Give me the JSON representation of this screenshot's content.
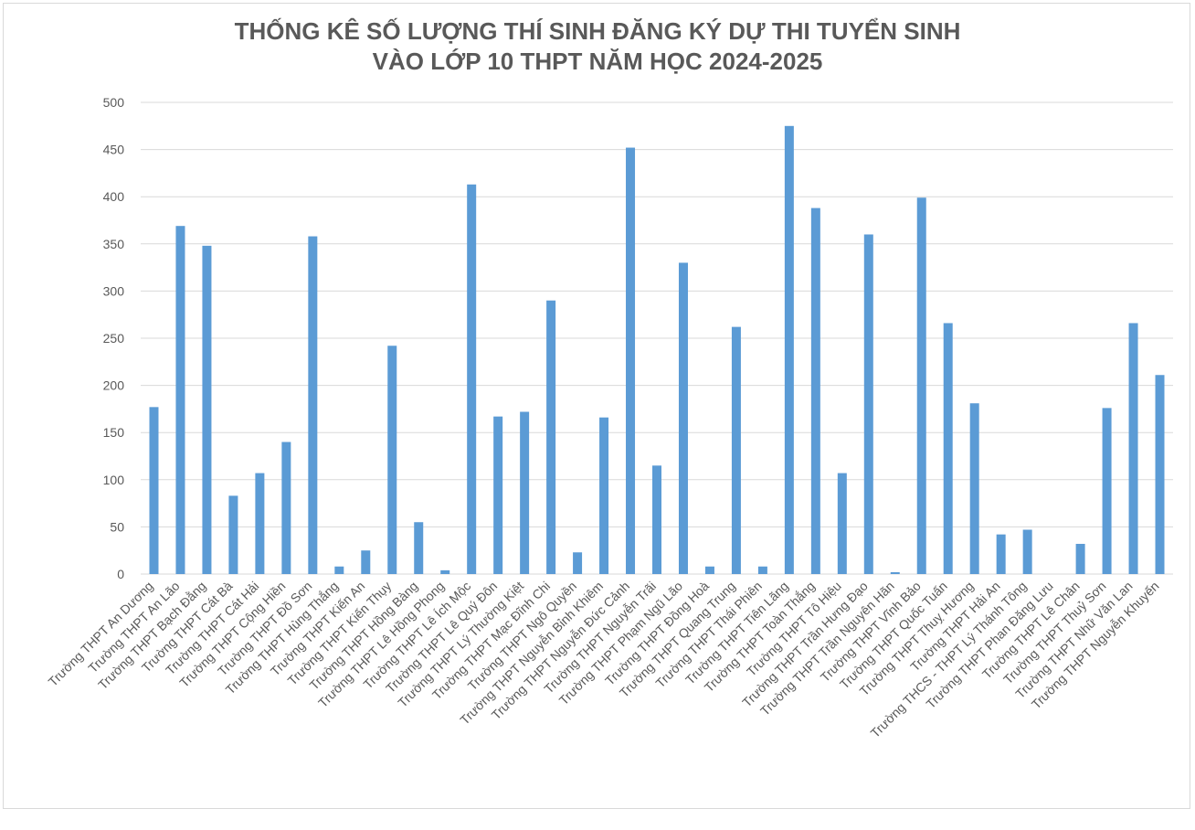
{
  "chart_data": {
    "type": "bar",
    "title_lines": [
      "THỐNG KÊ SỐ LƯỢNG THÍ SINH ĐĂNG KÝ DỰ THI TUYỂN SINH",
      "VÀO LỚP 10 THPT NĂM HỌC 2024-2025"
    ],
    "xlabel": "",
    "ylabel": "",
    "ylim": [
      0,
      500
    ],
    "yticks": [
      0,
      50,
      100,
      150,
      200,
      250,
      300,
      350,
      400,
      450,
      500
    ],
    "grid": true,
    "legend": "none",
    "categories": [
      "Trường THPT An Dương",
      "Trường THPT An Lão",
      "Trường THPT Bạch Đằng",
      "Trường THPT Cát Bà",
      "Trường THPT Cát Hải",
      "Trường THPT Cộng Hiền",
      "Trường THPT Đồ Sơn",
      "Trường THPT Hùng Thắng",
      "Trường THPT Kiến An",
      "Trường THPT Kiến Thụy",
      "Trường THPT Hồng Bàng",
      "Trường THPT Lê Hồng Phong",
      "Trường THPT Lê Ích Mộc",
      "Trường THPT Lê Quý Đôn",
      "Trường THPT Lý Thường Kiệt",
      "Trường THPT Mạc Đĩnh Chi",
      "Trường THPT Ngô Quyền",
      "Trường THPT Nguyễn Bỉnh Khiêm",
      "Trường THPT Nguyễn Đức Cảnh",
      "Trường THPT Nguyễn Trãi",
      "Trường THPT Phạm Ngũ Lão",
      "Trường THPT Đồng Hoà",
      "Trường THPT Quang Trung",
      "Trường THPT Thái Phiên",
      "Trường THPT Tiên Lãng",
      "Trường THPT Toàn Thắng",
      "Trường THPT Tô Hiệu",
      "Trường THPT Trần Hưng Đạo",
      "Trường THPT Trần Nguyên Hãn",
      "Trường THPT Vĩnh Bảo",
      "Trường THPT Quốc Tuấn",
      "Trường THPT Thuỵ Hương",
      "Trường THPT Hải An",
      "Trường THCS - THPT Lý Thánh Tông",
      "Trường THPT Phan Đăng Lưu",
      "Trường THPT Lê Chân",
      "Trường THPT Thuỷ Sơn",
      "Trường THPT Nhữ Văn Lan",
      "Trường THPT Nguyễn Khuyến"
    ],
    "values": [
      177,
      369,
      348,
      83,
      107,
      140,
      358,
      8,
      25,
      242,
      55,
      4,
      413,
      167,
      172,
      290,
      23,
      166,
      452,
      115,
      330,
      8,
      262,
      8,
      475,
      388,
      107,
      360,
      2,
      399,
      266,
      181,
      42,
      47,
      0,
      32,
      176,
      266,
      211
    ],
    "bar_color": "#5b9bd5",
    "grid_color": "#d9d9d9",
    "text_color": "#595959"
  }
}
